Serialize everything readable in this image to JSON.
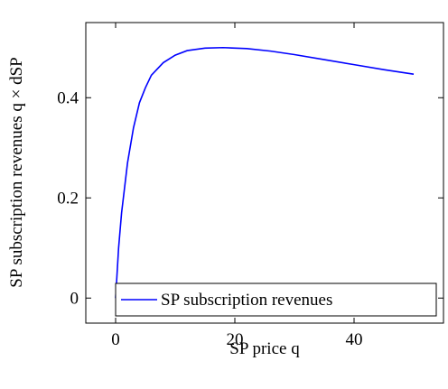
{
  "chart_data": {
    "type": "line",
    "x_label": "SP price q",
    "y_label": "SP subscription revenues q × dSP",
    "x": [
      0,
      0.5,
      1,
      1.5,
      2,
      3,
      4,
      5,
      6,
      8,
      10,
      12,
      15,
      18,
      22,
      26,
      30,
      35,
      40,
      45,
      50
    ],
    "series": [
      {
        "name": "SP subscription revenues",
        "color": "#0000ff",
        "values": [
          0,
          0.1,
          0.17,
          0.22,
          0.27,
          0.34,
          0.39,
          0.42,
          0.445,
          0.47,
          0.485,
          0.494,
          0.499,
          0.5,
          0.498,
          0.493,
          0.486,
          0.476,
          0.466,
          0.456,
          0.447
        ]
      }
    ],
    "xlim": [
      -5,
      55
    ],
    "ylim": [
      -0.05,
      0.55
    ],
    "xticks": [
      0,
      20,
      40
    ],
    "yticks": [
      0,
      0.2,
      0.4
    ],
    "legend": "lower right"
  }
}
